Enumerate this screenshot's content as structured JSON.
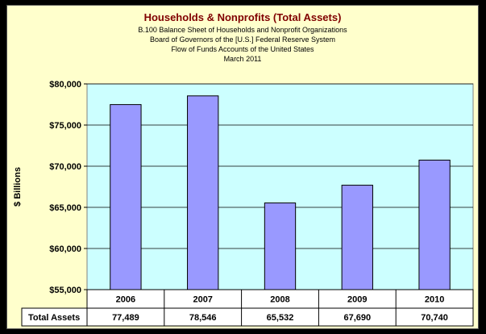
{
  "chart_data": {
    "type": "bar",
    "title": "Households & Nonprofits (Total Assets)",
    "subtitle_lines": [
      "B.100 Balance Sheet of Households and Nonprofit Organizations",
      "Board of Governors of the [U.S.] Federal Reserve System",
      "Flow of Funds Accounts of the United States",
      "March 2011"
    ],
    "ylabel": "$ Billions",
    "ylim": [
      55000,
      80000
    ],
    "yticks": [
      55000,
      60000,
      65000,
      70000,
      75000,
      80000
    ],
    "ytick_labels": [
      "$55,000",
      "$60,000",
      "$65,000",
      "$70,000",
      "$75,000",
      "$80,000"
    ],
    "categories": [
      "2006",
      "2007",
      "2008",
      "2009",
      "2010"
    ],
    "series": [
      {
        "name": "Total Assets",
        "values": [
          77489,
          78546,
          65532,
          67690,
          70740
        ]
      }
    ],
    "value_labels": [
      "77,489",
      "78,546",
      "65,532",
      "67,690",
      "70,740"
    ],
    "grid": true,
    "data_table": true,
    "colors": {
      "bar": "#9999ff",
      "plot_bg": "#ccffff",
      "panel_bg": "#ffffcc",
      "title": "#800000"
    }
  }
}
